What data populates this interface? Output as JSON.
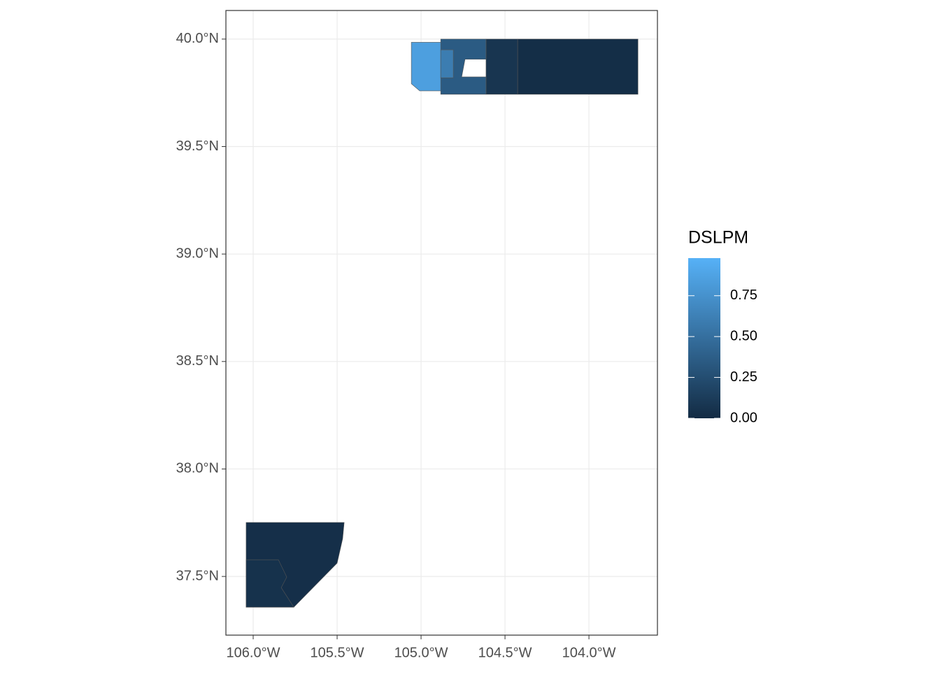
{
  "chart_data": {
    "type": "choropleth",
    "legend_title": "DSLPM",
    "xlim": [
      -106.1625,
      -103.592
    ],
    "ylim": [
      37.227,
      40.133
    ],
    "xticks": [
      {
        "value": -106,
        "label": "106.0°W"
      },
      {
        "value": -105.5,
        "label": "105.5°W"
      },
      {
        "value": -105,
        "label": "105.0°W"
      },
      {
        "value": -104.5,
        "label": "104.5°W"
      },
      {
        "value": -104,
        "label": "104.0°W"
      }
    ],
    "yticks": [
      {
        "value": 37.5,
        "label": "37.5°N"
      },
      {
        "value": 38,
        "label": "38.0°N"
      },
      {
        "value": 38.5,
        "label": "38.5°N"
      },
      {
        "value": 39,
        "label": "39.0°N"
      },
      {
        "value": 39.5,
        "label": "39.5°N"
      },
      {
        "value": 40,
        "label": "40.0°N"
      }
    ],
    "grid": true,
    "color_low": "#132B43",
    "color_high": "#56B1F7",
    "colorbar_lim": [
      0,
      0.98
    ],
    "colorbar_ticks": [
      {
        "value": 0,
        "label": "0.00"
      },
      0.25,
      {
        "value": 0.5,
        "label": "0.50"
      },
      0.75
    ],
    "values": [
      0.02,
      0.07,
      0.35,
      0.85,
      0.6,
      0.03,
      0.05
    ],
    "polygons": [
      [
        [
          -104.425,
          40
        ],
        [
          -103.708,
          40
        ],
        [
          -103.708,
          39.743
        ],
        [
          -104.425,
          39.743
        ]
      ],
      [
        [
          -104.613,
          40
        ],
        [
          -104.425,
          40
        ],
        [
          -104.425,
          39.743
        ],
        [
          -104.613,
          39.743
        ]
      ],
      [
        [
          -104.883,
          40
        ],
        [
          -104.613,
          40
        ],
        [
          -104.613,
          39.906
        ],
        [
          -104.738,
          39.906
        ],
        [
          -104.758,
          39.824
        ],
        [
          -104.613,
          39.824
        ],
        [
          -104.613,
          39.743
        ],
        [
          -104.883,
          39.743
        ]
      ],
      [
        [
          -105.058,
          39.985
        ],
        [
          -104.883,
          39.985
        ],
        [
          -104.883,
          39.759
        ],
        [
          -105.008,
          39.759
        ],
        [
          -105.058,
          39.792
        ]
      ],
      [
        [
          -104.883,
          39.95
        ],
        [
          -104.808,
          39.95
        ],
        [
          -104.808,
          39.82
        ],
        [
          -104.883,
          39.82
        ]
      ],
      [
        [
          -106.042,
          37.751
        ],
        [
          -105.458,
          37.751
        ],
        [
          -105.467,
          37.676
        ],
        [
          -105.5,
          37.562
        ],
        [
          -105.758,
          37.357
        ],
        [
          -106.042,
          37.357
        ]
      ],
      [
        [
          -106.042,
          37.578
        ],
        [
          -105.85,
          37.578
        ],
        [
          -105.8,
          37.497
        ],
        [
          -105.833,
          37.448
        ],
        [
          -105.758,
          37.357
        ],
        [
          -106.042,
          37.357
        ]
      ]
    ]
  }
}
